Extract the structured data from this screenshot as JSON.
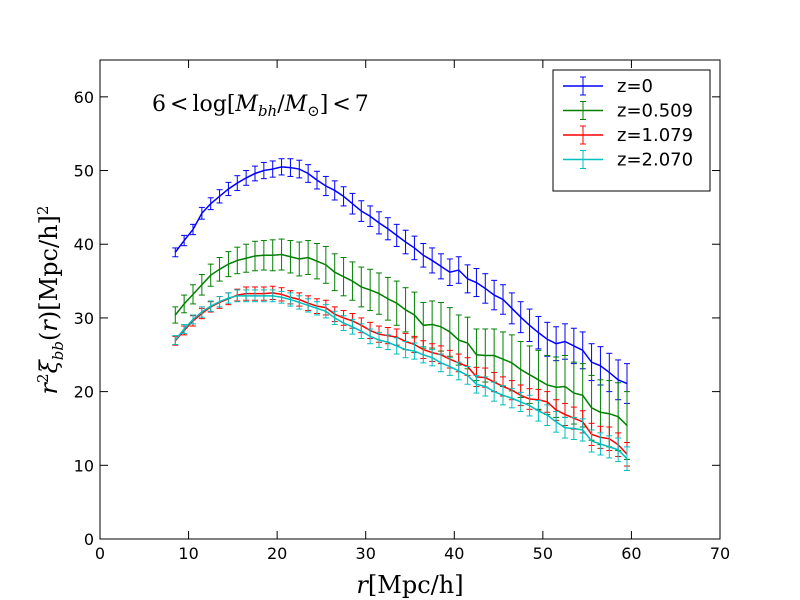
{
  "chart_data": {
    "type": "line",
    "title": "",
    "annotation": "6 < log[M_bh / M_⊙] < 7",
    "xlabel": "r[Mpc/h]",
    "ylabel": "r²ξbb(r)[Mpc/h]²",
    "xlim": [
      0,
      70
    ],
    "ylim": [
      0,
      65
    ],
    "xticks": [
      0,
      10,
      20,
      30,
      40,
      50,
      60,
      70
    ],
    "yticks": [
      0,
      10,
      20,
      30,
      40,
      50,
      60
    ],
    "grid": false,
    "legend_position": "top-right",
    "x": [
      8.5,
      9.5,
      10.5,
      11.5,
      12.5,
      13.5,
      14.5,
      15.5,
      16.5,
      17.5,
      18.5,
      19.5,
      20.5,
      21.5,
      22.5,
      23.5,
      24.5,
      25.5,
      26.5,
      27.5,
      28.5,
      29.5,
      30.5,
      31.5,
      32.5,
      33.5,
      34.5,
      35.5,
      36.5,
      37.5,
      38.5,
      39.5,
      40.5,
      41.5,
      42.5,
      43.5,
      44.5,
      45.5,
      46.5,
      47.5,
      48.5,
      49.5,
      50.5,
      51.5,
      52.5,
      53.5,
      54.5,
      55.5,
      56.5,
      57.5,
      58.5,
      59.5
    ],
    "series": [
      {
        "name": "z=0",
        "color": "#0000ff",
        "values": [
          38.9,
          40.5,
          42.0,
          44.2,
          45.5,
          46.5,
          47.5,
          48.3,
          49.0,
          49.6,
          50.0,
          50.2,
          50.5,
          50.4,
          50.2,
          49.6,
          48.7,
          47.9,
          47.3,
          46.5,
          45.5,
          44.5,
          43.8,
          42.9,
          42.1,
          41.2,
          40.3,
          39.5,
          38.5,
          37.8,
          37.0,
          36.2,
          36.5,
          35.3,
          34.8,
          34.0,
          33.1,
          32.5,
          31.3,
          30.1,
          29.0,
          28.0,
          27.1,
          26.5,
          26.8,
          26.2,
          25.6,
          24.0,
          23.5,
          22.6,
          21.6,
          21.1
        ],
        "errors": [
          0.6,
          0.7,
          0.7,
          0.8,
          0.8,
          0.9,
          0.9,
          1.0,
          1.0,
          1.0,
          1.1,
          1.1,
          1.1,
          1.2,
          1.2,
          1.2,
          1.2,
          1.3,
          1.3,
          1.3,
          1.4,
          1.4,
          1.4,
          1.5,
          1.5,
          1.5,
          1.6,
          1.6,
          1.6,
          1.7,
          1.7,
          1.8,
          1.8,
          1.9,
          1.9,
          2.0,
          2.0,
          2.0,
          2.1,
          2.1,
          2.2,
          2.2,
          2.3,
          2.3,
          2.4,
          2.4,
          2.5,
          2.5,
          2.6,
          2.6,
          2.7,
          2.7
        ]
      },
      {
        "name": "z=0.509",
        "color": "#008000",
        "values": [
          30.4,
          31.9,
          33.2,
          34.5,
          35.8,
          36.6,
          37.3,
          37.8,
          38.1,
          38.4,
          38.5,
          38.5,
          38.6,
          38.3,
          38.0,
          38.2,
          37.7,
          37.2,
          36.2,
          35.6,
          35.0,
          34.2,
          33.8,
          33.3,
          32.6,
          32.0,
          31.1,
          30.4,
          29.0,
          29.1,
          28.8,
          28.1,
          27.0,
          26.6,
          25.0,
          24.9,
          24.9,
          24.4,
          23.9,
          23.0,
          22.3,
          21.6,
          20.9,
          20.6,
          20.7,
          19.8,
          19.5,
          17.8,
          17.2,
          17.0,
          16.6,
          15.4
        ],
        "errors": [
          1.1,
          1.2,
          1.3,
          1.4,
          1.5,
          1.6,
          1.7,
          1.8,
          1.9,
          2.0,
          2.0,
          2.1,
          2.1,
          2.2,
          2.3,
          2.3,
          2.4,
          2.5,
          2.5,
          2.6,
          2.6,
          2.7,
          2.8,
          2.8,
          2.9,
          3.0,
          3.0,
          3.1,
          3.1,
          3.2,
          3.3,
          3.3,
          3.4,
          3.5,
          3.5,
          3.6,
          3.6,
          3.7,
          3.8,
          3.8,
          3.9,
          4.0,
          4.0,
          4.1,
          4.2,
          4.2,
          4.3,
          4.4,
          4.4,
          4.5,
          4.6,
          4.6
        ]
      },
      {
        "name": "z=1.079",
        "color": "#ff0000",
        "values": [
          26.9,
          28.3,
          29.6,
          30.6,
          31.5,
          32.1,
          32.6,
          33.1,
          33.3,
          33.3,
          33.3,
          33.4,
          33.2,
          32.8,
          32.5,
          32.0,
          31.6,
          31.4,
          30.5,
          30.0,
          29.6,
          29.0,
          28.3,
          27.8,
          27.6,
          27.4,
          26.8,
          26.4,
          25.7,
          25.3,
          25.0,
          24.4,
          23.9,
          23.4,
          22.0,
          21.9,
          21.3,
          20.7,
          20.2,
          19.5,
          19.0,
          18.9,
          18.6,
          17.5,
          16.9,
          16.4,
          15.9,
          14.2,
          13.8,
          13.6,
          12.8,
          11.5
        ],
        "errors": [
          0.6,
          0.6,
          0.7,
          0.7,
          0.7,
          0.8,
          0.8,
          0.8,
          0.9,
          0.9,
          0.9,
          0.9,
          0.9,
          0.9,
          0.9,
          1.0,
          1.0,
          1.0,
          1.0,
          1.0,
          1.0,
          1.0,
          1.1,
          1.1,
          1.1,
          1.1,
          1.1,
          1.1,
          1.2,
          1.2,
          1.2,
          1.2,
          1.2,
          1.2,
          1.3,
          1.3,
          1.3,
          1.3,
          1.3,
          1.4,
          1.4,
          1.4,
          1.4,
          1.4,
          1.5,
          1.5,
          1.5,
          1.5,
          1.5,
          1.6,
          1.6,
          1.6
        ]
      },
      {
        "name": "z=2.070",
        "color": "#00bfbf",
        "values": [
          27.0,
          28.5,
          29.8,
          30.8,
          31.6,
          32.2,
          32.7,
          33.0,
          33.0,
          33.0,
          33.0,
          33.0,
          32.8,
          32.5,
          32.1,
          31.7,
          31.3,
          30.9,
          30.0,
          29.3,
          28.8,
          28.2,
          27.5,
          27.0,
          26.7,
          26.2,
          25.7,
          25.5,
          25.0,
          24.6,
          23.9,
          23.4,
          22.8,
          22.2,
          21.0,
          20.7,
          20.0,
          19.5,
          19.1,
          18.6,
          18.1,
          17.4,
          16.8,
          15.9,
          15.1,
          15.0,
          14.8,
          13.3,
          12.9,
          12.5,
          12.1,
          10.9
        ],
        "errors": [
          0.6,
          0.6,
          0.6,
          0.7,
          0.7,
          0.7,
          0.7,
          0.8,
          0.8,
          0.8,
          0.8,
          0.8,
          0.8,
          0.9,
          0.9,
          0.9,
          0.9,
          0.9,
          0.9,
          1.0,
          1.0,
          1.0,
          1.0,
          1.0,
          1.0,
          1.1,
          1.1,
          1.1,
          1.1,
          1.1,
          1.2,
          1.2,
          1.2,
          1.2,
          1.2,
          1.3,
          1.3,
          1.3,
          1.3,
          1.3,
          1.4,
          1.4,
          1.4,
          1.4,
          1.4,
          1.5,
          1.5,
          1.5,
          1.5,
          1.5,
          1.6,
          1.6
        ]
      }
    ]
  }
}
